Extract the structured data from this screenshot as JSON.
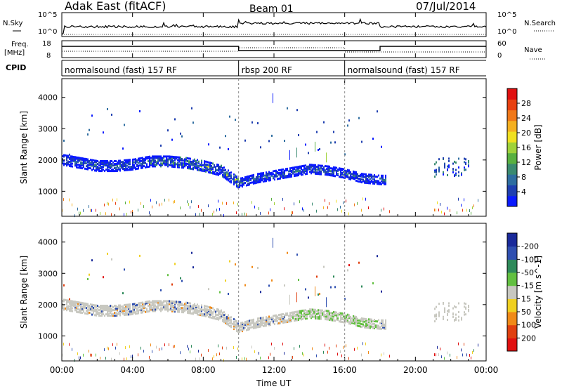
{
  "header": {
    "title": "Adak East (fitACF)",
    "beam": "Beam 01",
    "date": "07/Jul/2014"
  },
  "left_labels": {
    "nsky": "N.Sky",
    "freq_line1": "Freq.",
    "freq_line2": "[MHz]",
    "cpid": "CPID"
  },
  "right_labels": {
    "nsearch": "N.Search",
    "nave": "Nave"
  },
  "noise_axis": {
    "left_top": "10^5",
    "left_bottom": "10^0",
    "right_top": "10^5",
    "right_bottom": "10^0"
  },
  "freq_axis": {
    "left_top": "18",
    "left_bottom": "8",
    "right_top": "60",
    "right_bottom": "0"
  },
  "cpid_segments": [
    {
      "label": "normalsound (fast) 157 RF",
      "start_h": 0,
      "end_h": 10
    },
    {
      "label": "rbsp 200 RF",
      "start_h": 10,
      "end_h": 16
    },
    {
      "label": "normalsound (fast) 157 RF",
      "start_h": 16,
      "end_h": 24
    }
  ],
  "time_axis": {
    "label": "Time UT",
    "ticks": [
      "00:00",
      "04:00",
      "08:00",
      "12:00",
      "16:00",
      "20:00",
      "00:00"
    ],
    "range_h": [
      0,
      24
    ]
  },
  "chart_data": [
    {
      "type": "heatmap",
      "panel": "power",
      "ylabel": "Slant Range [km]",
      "yticks": [
        "1000",
        "2000",
        "3000",
        "4000"
      ],
      "ylim": [
        200,
        4600
      ],
      "colorbar": {
        "label": "Power [dB]",
        "ticks": [
          "4",
          "8",
          "12",
          "16",
          "20",
          "24",
          "28"
        ],
        "range": [
          0,
          32
        ],
        "colors": [
          "#0a1aff",
          "#1f3fb0",
          "#2e6da0",
          "#3a8a70",
          "#58b040",
          "#9fd23a",
          "#f0e020",
          "#f5b020",
          "#f07818",
          "#e84010",
          "#e01010"
        ]
      },
      "echo_band": {
        "time_h": [
          0.0,
          1.0,
          2.0,
          3.0,
          4.0,
          5.0,
          6.0,
          7.0,
          8.0,
          9.0,
          10.0,
          11.0,
          12.0,
          13.0,
          14.0,
          15.0,
          16.0,
          17.0,
          18.0
        ],
        "center_km": [
          2050,
          1950,
          1850,
          1850,
          1900,
          2000,
          2000,
          1950,
          1850,
          1700,
          1300,
          1450,
          1550,
          1650,
          1750,
          1700,
          1600,
          1450,
          1400
        ]
      }
    },
    {
      "type": "heatmap",
      "panel": "velocity",
      "ylabel": "Slant Range [km]",
      "yticks": [
        "1000",
        "2000",
        "3000",
        "4000"
      ],
      "ylim": [
        200,
        4600
      ],
      "colorbar": {
        "label": "Velocity [m s^-1]",
        "ticks": [
          "200",
          "100",
          "50",
          "15",
          "-15",
          "-50",
          "-100",
          "-200"
        ],
        "colors": [
          "#1a2a9a",
          "#2f4fb0",
          "#2e8a5a",
          "#62c040",
          "#c8c8c0",
          "#f0d020",
          "#f08a18",
          "#e04010",
          "#e01010"
        ]
      }
    }
  ]
}
